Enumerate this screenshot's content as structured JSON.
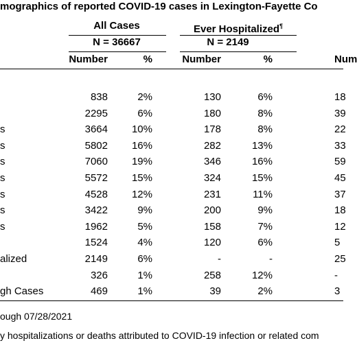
{
  "title": "mographics of reported COVID-19 cases in Lexington-Fayette Co",
  "headers": {
    "group1": "All Cases",
    "group2": "Ever Hospitalized",
    "group2_mark": "¶",
    "n1": "N = 36667",
    "n2": "N = 2149",
    "columns": [
      "Number",
      "%",
      "Number",
      "%",
      "Num"
    ]
  },
  "table": {
    "rows": [
      [
        null,
        "838",
        "2%",
        "130",
        "6%",
        "18"
      ],
      [
        null,
        "2295",
        "6%",
        "180",
        "8%",
        "39"
      ],
      [
        "s",
        "3664",
        "10%",
        "178",
        "8%",
        "22"
      ],
      [
        "s",
        "5802",
        "16%",
        "282",
        "13%",
        "33"
      ],
      [
        "s",
        "7060",
        "19%",
        "346",
        "16%",
        "59"
      ],
      [
        "s",
        "5572",
        "15%",
        "324",
        "15%",
        "45"
      ],
      [
        "s",
        "4528",
        "12%",
        "231",
        "11%",
        "37"
      ],
      [
        "s",
        "3422",
        "9%",
        "200",
        "9%",
        "18"
      ],
      [
        "s",
        "1962",
        "5%",
        "158",
        "7%",
        "12"
      ],
      [
        null,
        "1524",
        "4%",
        "120",
        "6%",
        "5"
      ],
      [
        "alized",
        "2149",
        "6%",
        "-",
        "-",
        "25"
      ],
      [
        null,
        "326",
        "1%",
        "258",
        "12%",
        "-"
      ],
      [
        "gh Cases",
        "469",
        "1%",
        "39",
        "2%",
        "3"
      ]
    ]
  },
  "footnotes": [
    "ough 07/28/2021",
    "y hospitalizations or deaths attributed to COVID-19 infection or related com"
  ]
}
